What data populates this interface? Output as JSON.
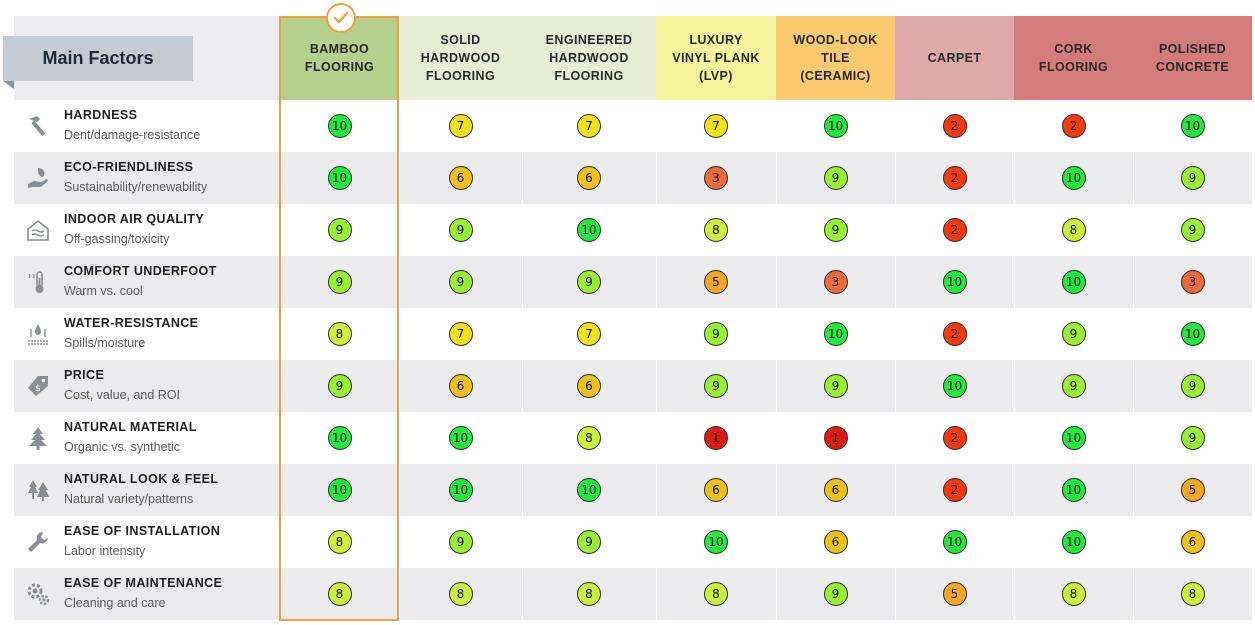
{
  "header": {
    "main_label": "Main Factors"
  },
  "selected_column": 0,
  "columns": [
    {
      "label": "Bamboo\nFlooring",
      "bg": "#b5cf8c"
    },
    {
      "label": "Solid\nHardwood\nFlooring",
      "bg": "#e6eed6"
    },
    {
      "label": "Engineered\nHardwood\nFlooring",
      "bg": "#e6eed6"
    },
    {
      "label": "Luxury\nVinyl Plank\n(LVP)",
      "bg": "#f6f49a"
    },
    {
      "label": "Wood-Look\nTile\n(Ceramic)",
      "bg": "#fbc96e"
    },
    {
      "label": "Carpet",
      "bg": "#dda8a8"
    },
    {
      "label": "Cork\nFlooring",
      "bg": "#d47c7c"
    },
    {
      "label": "Polished\nConcrete",
      "bg": "#d47c7c"
    }
  ],
  "factors": [
    {
      "icon": "hammer-icon",
      "name": "Hardness",
      "sub": "Dent/damage-resistance",
      "scores": [
        "10",
        "7",
        "7",
        "7",
        "10",
        "2",
        "2",
        "10"
      ]
    },
    {
      "icon": "eco-hand-leaf-icon",
      "name": "Eco-Friendliness",
      "sub": "Sustainability/renewability",
      "scores": [
        "10",
        "6",
        "6",
        "3",
        "9",
        "2",
        "10",
        "9"
      ]
    },
    {
      "icon": "house-air-icon",
      "name": "Indoor Air Quality",
      "sub": "Off-gassing/toxicity",
      "scores": [
        "9",
        "9",
        "10",
        "8",
        "9",
        "2",
        "8",
        "9"
      ]
    },
    {
      "icon": "thermometer-icon",
      "name": "Comfort Underfoot",
      "sub": "Warm vs. cool",
      "scores": [
        "9",
        "9",
        "9",
        "5",
        "3",
        "10",
        "10",
        "3"
      ]
    },
    {
      "icon": "water-drops-icon",
      "name": "Water-Resistance",
      "sub": "Spills/moisture",
      "scores": [
        "8",
        "7",
        "7",
        "9",
        "10",
        "2",
        "9",
        "10"
      ]
    },
    {
      "icon": "price-tag-icon",
      "name": "Price",
      "sub": "Cost, value, and ROI",
      "scores": [
        "9",
        "6",
        "6",
        "9",
        "9",
        "10",
        "9",
        "9"
      ]
    },
    {
      "icon": "pine-tree-icon",
      "name": "Natural Material",
      "sub": "Organic vs. synthetic",
      "scores": [
        "10",
        "10",
        "8",
        "1",
        "1",
        "2",
        "10",
        "9"
      ]
    },
    {
      "icon": "forest-icon",
      "name": "Natural Look & Feel",
      "sub": "Natural variety/patterns",
      "scores": [
        "10",
        "10",
        "10",
        "6",
        "6",
        "2",
        "10",
        "5"
      ]
    },
    {
      "icon": "wrench-icon",
      "name": "Ease of Installation",
      "sub": "Labor intensity",
      "scores": [
        "8",
        "9",
        "9",
        "10",
        "6",
        "10",
        "10",
        "6"
      ]
    },
    {
      "icon": "gears-icon",
      "name": "Ease of Maintenance",
      "sub": "Cleaning and care",
      "scores": [
        "8",
        "8",
        "8",
        "8",
        "9",
        "5",
        "8",
        "8"
      ]
    }
  ],
  "score_colors": {
    "1": "#dd1a10",
    "2": "#f23a10",
    "3": "#ea6a3c",
    "5": "#f5a623",
    "6": "#ecc21a",
    "7": "#f2e21a",
    "8": "#ccf03a",
    "9": "#99f032",
    "10": "#22ea3a"
  },
  "accent_color": "#f0a13c"
}
